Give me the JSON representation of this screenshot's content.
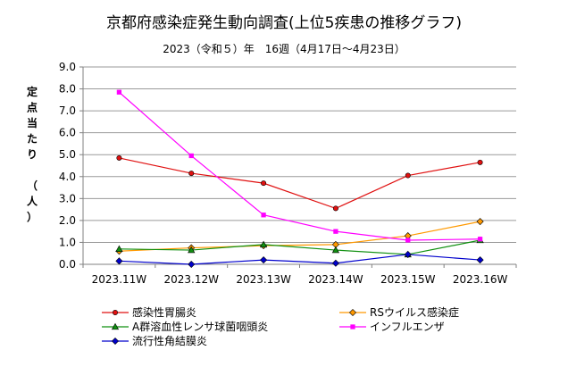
{
  "chart_data": {
    "type": "line",
    "title": "京都府感染症発生動向調査(上位5疾患の推移グラフ)",
    "subtitle": "2023（令和５）年　16週（4月17日～4月23日）",
    "ylabel": "定点当たり　（人）",
    "xlabel": "",
    "categories": [
      "2023.11W",
      "2023.12W",
      "2023.13W",
      "2023.14W",
      "2023.15W",
      "2023.16W"
    ],
    "ylim": [
      0,
      9
    ],
    "yticks": [
      "0.0",
      "1.0",
      "2.0",
      "3.0",
      "4.0",
      "5.0",
      "6.0",
      "7.0",
      "8.0",
      "9.0"
    ],
    "grid": true,
    "legend_position": "bottom",
    "series": [
      {
        "name": "感染性胃腸炎",
        "values": [
          4.85,
          4.15,
          3.7,
          2.55,
          4.05,
          4.65
        ],
        "color": "#e01010",
        "marker": "circle"
      },
      {
        "name": "RSウイルス感染症",
        "values": [
          0.6,
          0.75,
          0.85,
          0.9,
          1.3,
          1.95
        ],
        "color": "#ff9900",
        "marker": "diamond"
      },
      {
        "name": "A群溶血性レンサ球菌咽頭炎",
        "values": [
          0.7,
          0.65,
          0.9,
          0.65,
          0.45,
          1.1
        ],
        "color": "#109010",
        "marker": "triangle"
      },
      {
        "name": "インフルエンザ",
        "values": [
          7.85,
          4.95,
          2.25,
          1.5,
          1.1,
          1.15
        ],
        "color": "#ff00ff",
        "marker": "square"
      },
      {
        "name": "流行性角結膜炎",
        "values": [
          0.15,
          0.0,
          0.2,
          0.05,
          0.45,
          0.2
        ],
        "color": "#0000cc",
        "marker": "diamond"
      }
    ]
  }
}
